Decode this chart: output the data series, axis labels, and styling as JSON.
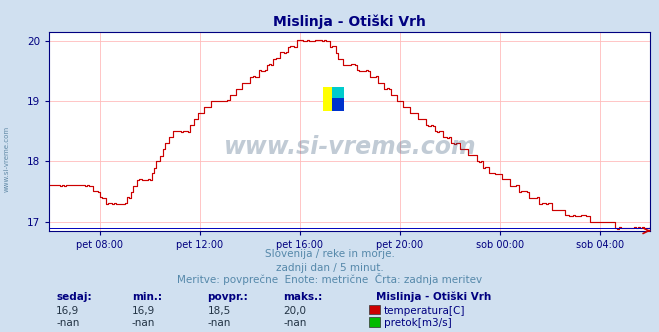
{
  "title": "Mislinja - Otiški Vrh",
  "title_color": "#000080",
  "bg_color": "#d0e0f0",
  "plot_bg_color": "#ffffff",
  "grid_color": "#ffbbbb",
  "axis_color": "#000080",
  "line_color": "#cc0000",
  "line_color_flow": "#0000bb",
  "ylim_min": 16.85,
  "ylim_max": 20.15,
  "yticks": [
    17,
    18,
    19,
    20
  ],
  "xtick_labels": [
    "pet 08:00",
    "pet 12:00",
    "pet 16:00",
    "pet 20:00",
    "sob 00:00",
    "sob 04:00"
  ],
  "xtick_positions": [
    2,
    6,
    10,
    14,
    18,
    22
  ],
  "xlim_min": 0,
  "xlim_max": 24,
  "subtitle1": "Slovenija / reke in morje.",
  "subtitle2": "zadnji dan / 5 minut.",
  "subtitle3": "Meritve: povprečne  Enote: metrične  Črta: zadnja meritev",
  "subtitle_color": "#5588aa",
  "footer_headers": [
    "sedaj:",
    "min.:",
    "povpr.:",
    "maks.:"
  ],
  "footer_values1": [
    "16,9",
    "16,9",
    "18,5",
    "20,0"
  ],
  "footer_values2": [
    "-nan",
    "-nan",
    "-nan",
    "-nan"
  ],
  "footer_label": "Mislinja - Otiški Vrh",
  "footer_color": "#000080",
  "footer_val_color": "#223344",
  "legend1": "temperatura[C]",
  "legend2": "pretok[m3/s]",
  "legend1_color": "#cc0000",
  "legend2_color": "#00bb00",
  "watermark": "www.si-vreme.com",
  "watermark_color": "#335577",
  "watermark_alpha": 0.3,
  "n_points": 288
}
